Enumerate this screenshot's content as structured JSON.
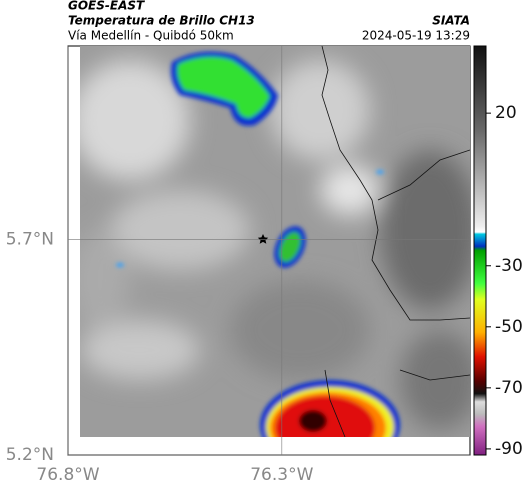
{
  "header": {
    "source": "GOES-EAST",
    "title": "Temperatura de Brillo CH13",
    "subtitle": "Vía Medellín - Quibdó 50km",
    "credit": "SIATA",
    "timestamp": "2024-05-19 13:29"
  },
  "map": {
    "xlim": [
      -76.8,
      -75.86
    ],
    "ylim": [
      5.2,
      6.15
    ],
    "xticks": [
      {
        "value": -76.8,
        "label": "76.8°W"
      },
      {
        "value": -76.3,
        "label": "76.3°W"
      }
    ],
    "yticks": [
      {
        "value": 5.7,
        "label": "5.7°N"
      },
      {
        "value": 5.2,
        "label": "5.2°N"
      }
    ],
    "grid": true
  },
  "colorbar": {
    "lim": [
      -92,
      42
    ],
    "ticks": [
      20,
      -30,
      -50,
      -70,
      -90
    ]
  }
}
